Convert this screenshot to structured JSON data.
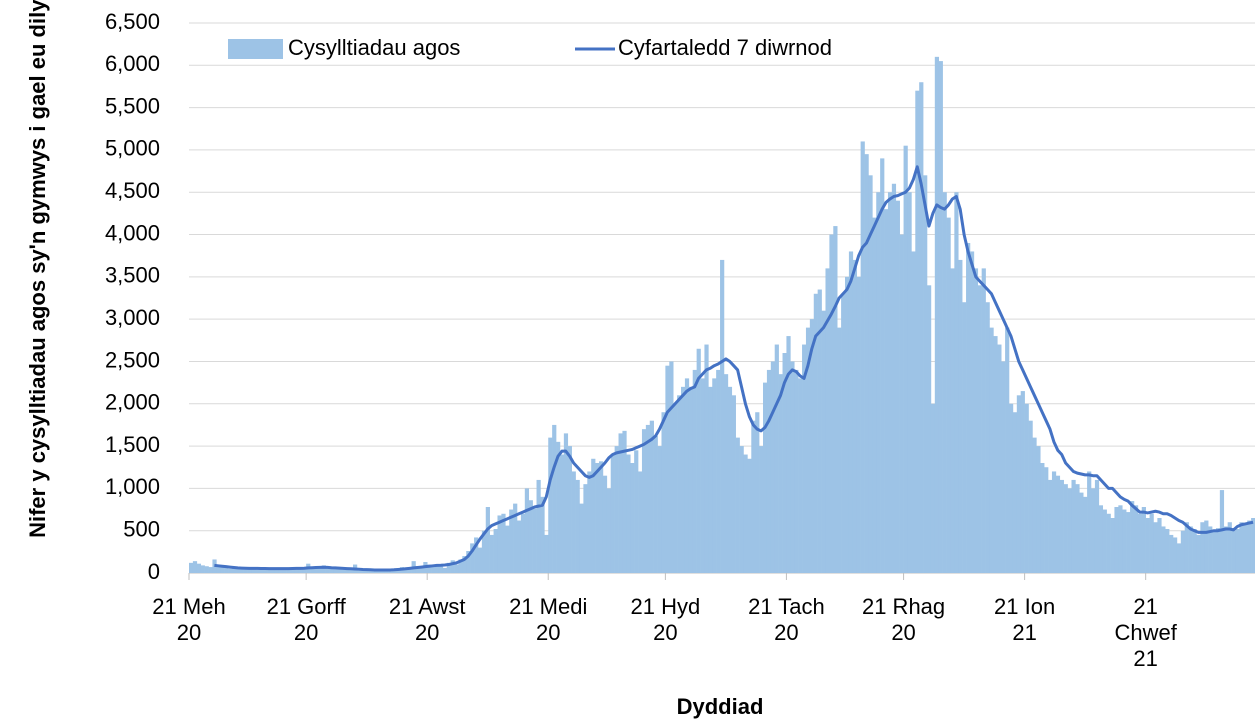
{
  "chart_data": {
    "type": "bar",
    "y_label": "Nifer y cysylltiadau agos sy'n gymwys i gael eu dilyn",
    "x_label": "Dyddiad",
    "ylim": [
      0,
      6500
    ],
    "yticks": [
      0,
      500,
      {
        "value": 1000,
        "label": "1,000"
      },
      {
        "value": 1500,
        "label": "1,500"
      },
      {
        "value": 2000,
        "label": "2,000"
      },
      {
        "value": 2500,
        "label": "2,500"
      },
      {
        "value": 3000,
        "label": "3,000"
      },
      {
        "value": 3500,
        "label": "3,500"
      },
      {
        "value": 4000,
        "label": "4,000"
      },
      {
        "value": 4500,
        "label": "4,500"
      },
      {
        "value": 5000,
        "label": "5,000"
      },
      {
        "value": 5500,
        "label": "5,500"
      },
      {
        "value": 6000,
        "label": "6,000"
      },
      {
        "value": 6500,
        "label": "6,500"
      }
    ],
    "grid": true,
    "legend": "top-left",
    "categories": [
      "21 Meh 20",
      null,
      null,
      null,
      null,
      null,
      null,
      null,
      null,
      null,
      null,
      null,
      null,
      null,
      null,
      null,
      null,
      null,
      null,
      null,
      null,
      null,
      null,
      null,
      null,
      null,
      null,
      null,
      null,
      null,
      "21 Gorff 20",
      null,
      null,
      null,
      null,
      null,
      null,
      null,
      null,
      null,
      null,
      null,
      null,
      null,
      null,
      null,
      null,
      null,
      null,
      null,
      null,
      null,
      null,
      null,
      null,
      null,
      null,
      null,
      null,
      null,
      null,
      "21 Awst 20",
      null,
      null,
      null,
      null,
      null,
      null,
      null,
      null,
      null,
      null,
      null,
      null,
      null,
      null,
      null,
      null,
      null,
      null,
      null,
      null,
      null,
      null,
      null,
      null,
      null,
      null,
      null,
      null,
      null,
      null,
      "21 Medi 20",
      null,
      null,
      null,
      null,
      null,
      null,
      null,
      null,
      null,
      null,
      null,
      null,
      null,
      null,
      null,
      null,
      null,
      null,
      null,
      null,
      null,
      null,
      null,
      null,
      null,
      null,
      null,
      null,
      null,
      "21 Hyd 20",
      null,
      null,
      null,
      null,
      null,
      null,
      null,
      null,
      null,
      null,
      null,
      null,
      null,
      null,
      null,
      null,
      null,
      null,
      null,
      null,
      null,
      null,
      null,
      null,
      null,
      null,
      null,
      null,
      null,
      null,
      "21 Tach 20",
      null,
      null,
      null,
      null,
      null,
      null,
      null,
      null,
      null,
      null,
      null,
      null,
      null,
      null,
      null,
      null,
      null,
      null,
      null,
      null,
      null,
      null,
      null,
      null,
      null,
      null,
      null,
      null,
      null,
      "21 Rhag 20",
      null,
      null,
      null,
      null,
      null,
      null,
      null,
      null,
      null,
      null,
      null,
      null,
      null,
      null,
      null,
      null,
      null,
      null,
      null,
      null,
      null,
      null,
      null,
      null,
      null,
      null,
      null,
      null,
      null,
      null,
      "21 Ion 21",
      null,
      null,
      null,
      null,
      null,
      null,
      null,
      null,
      null,
      null,
      null,
      null,
      null,
      null,
      null,
      null,
      null,
      null,
      null,
      null,
      null,
      null,
      null,
      null,
      null,
      null,
      null,
      null,
      null,
      null,
      "21 Chwef 21",
      null,
      null,
      null,
      null,
      null,
      null,
      null,
      null,
      null,
      null,
      null,
      null,
      null,
      null,
      null,
      null,
      null,
      null,
      null,
      null,
      null,
      null,
      null,
      null,
      null,
      null,
      null
    ],
    "series": [
      {
        "name": "Cysylltiadau agos",
        "type": "bar",
        "color": "#9dc3e6",
        "values": [
          120,
          140,
          110,
          90,
          80,
          70,
          160,
          90,
          70,
          60,
          50,
          60,
          70,
          55,
          45,
          60,
          50,
          40,
          55,
          60,
          50,
          45,
          60,
          55,
          50,
          40,
          45,
          55,
          50,
          60,
          110,
          70,
          60,
          80,
          90,
          60,
          50,
          70,
          60,
          40,
          50,
          40,
          100,
          30,
          40,
          50,
          30,
          20,
          30,
          40,
          30,
          20,
          40,
          50,
          70,
          40,
          60,
          140,
          80,
          60,
          130,
          100,
          70,
          90,
          80,
          60,
          120,
          150,
          100,
          160,
          200,
          260,
          350,
          420,
          300,
          500,
          780,
          450,
          520,
          680,
          700,
          560,
          750,
          820,
          620,
          700,
          1000,
          860,
          760,
          1100,
          900,
          450,
          1600,
          1750,
          1550,
          1400,
          1650,
          1500,
          1200,
          1100,
          820,
          1050,
          1200,
          1350,
          1300,
          1320,
          1150,
          1000,
          1400,
          1500,
          1650,
          1680,
          1400,
          1300,
          1450,
          1200,
          1700,
          1750,
          1800,
          1620,
          1500,
          1900,
          2450,
          2500,
          2000,
          2100,
          2200,
          2300,
          2200,
          2400,
          2650,
          2300,
          2700,
          2200,
          2300,
          2400,
          3700,
          2350,
          2200,
          2100,
          1600,
          1500,
          1400,
          1350,
          1800,
          1900,
          1500,
          2250,
          2400,
          2500,
          2700,
          2350,
          2600,
          2800,
          2500,
          2400,
          2300,
          2700,
          2900,
          3000,
          3300,
          3350,
          3100,
          3600,
          4000,
          4100,
          2900,
          3300,
          3500,
          3800,
          3700,
          3500,
          5100,
          4950,
          4700,
          4200,
          4500,
          4900,
          4300,
          4500,
          4600,
          4400,
          4000,
          5050,
          4500,
          3800,
          5700,
          5800,
          4700,
          3400,
          2000,
          6100,
          6050,
          4500,
          4200,
          3600,
          4500,
          3700,
          3200,
          3900,
          3800,
          3600,
          3400,
          3600,
          3200,
          2900,
          2800,
          2700,
          2500,
          2900,
          2000,
          1900,
          2100,
          2150,
          2000,
          1800,
          1600,
          1500,
          1300,
          1250,
          1100,
          1200,
          1150,
          1100,
          1050,
          1000,
          1100,
          1050,
          950,
          900,
          1200,
          1000,
          1100,
          800,
          750,
          700,
          650,
          780,
          800,
          750,
          720,
          850,
          800,
          700,
          780,
          650,
          700,
          600,
          650,
          550,
          520,
          450,
          420,
          350,
          500,
          600,
          550,
          520,
          450,
          600,
          620,
          550,
          500,
          530,
          980,
          550,
          600,
          500,
          520,
          600,
          580,
          620,
          650
        ]
      },
      {
        "name": "Cyfartaledd 7 diwrnod",
        "type": "line",
        "color": "#4472c4",
        "values": [
          null,
          null,
          null,
          null,
          null,
          null,
          90,
          85,
          80,
          75,
          70,
          65,
          60,
          58,
          56,
          55,
          55,
          54,
          53,
          53,
          52,
          52,
          52,
          52,
          52,
          52,
          53,
          54,
          55,
          56,
          60,
          62,
          65,
          67,
          68,
          66,
          62,
          60,
          58,
          55,
          52,
          50,
          48,
          45,
          42,
          40,
          38,
          36,
          35,
          35,
          35,
          36,
          38,
          42,
          45,
          50,
          55,
          60,
          65,
          70,
          75,
          80,
          85,
          90,
          92,
          95,
          100,
          110,
          120,
          140,
          160,
          200,
          260,
          330,
          400,
          460,
          520,
          560,
          580,
          600,
          620,
          640,
          660,
          680,
          700,
          720,
          740,
          760,
          780,
          790,
          800,
          900,
          1100,
          1250,
          1380,
          1440,
          1440,
          1380,
          1300,
          1250,
          1200,
          1150,
          1130,
          1150,
          1200,
          1250,
          1300,
          1360,
          1400,
          1420,
          1430,
          1440,
          1450,
          1460,
          1480,
          1500,
          1520,
          1550,
          1580,
          1620,
          1700,
          1800,
          1900,
          1950,
          2000,
          2050,
          2100,
          2150,
          2180,
          2200,
          2300,
          2350,
          2400,
          2420,
          2450,
          2470,
          2500,
          2530,
          2500,
          2450,
          2400,
          2200,
          2000,
          1850,
          1750,
          1700,
          1680,
          1720,
          1800,
          1900,
          2000,
          2100,
          2250,
          2350,
          2400,
          2380,
          2330,
          2300,
          2450,
          2650,
          2800,
          2850,
          2900,
          2980,
          3060,
          3150,
          3250,
          3300,
          3350,
          3450,
          3600,
          3750,
          3850,
          3900,
          4000,
          4100,
          4200,
          4300,
          4380,
          4420,
          4450,
          4460,
          4480,
          4500,
          4550,
          4650,
          4800,
          4600,
          4350,
          4100,
          4250,
          4350,
          4320,
          4300,
          4350,
          4420,
          4450,
          4300,
          4000,
          3800,
          3650,
          3500,
          3450,
          3400,
          3350,
          3300,
          3200,
          3100,
          3000,
          2900,
          2800,
          2650,
          2500,
          2400,
          2300,
          2200,
          2100,
          2000,
          1900,
          1800,
          1700,
          1550,
          1450,
          1400,
          1300,
          1250,
          1200,
          1180,
          1170,
          1160,
          1160,
          1150,
          1150,
          1100,
          1050,
          1000,
          1000,
          950,
          900,
          870,
          850,
          800,
          760,
          720,
          720,
          710,
          720,
          730,
          720,
          700,
          700,
          680,
          650,
          620,
          600,
          560,
          520,
          500,
          480,
          480,
          480,
          490,
          500,
          500,
          510,
          520,
          520,
          510,
          550,
          570,
          580,
          590,
          600
        ]
      }
    ]
  }
}
